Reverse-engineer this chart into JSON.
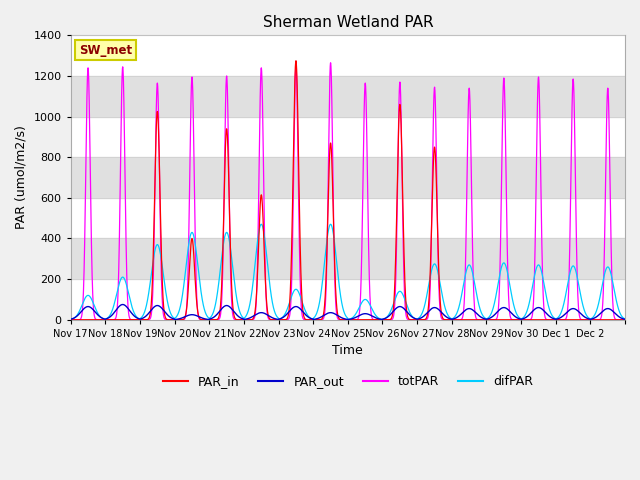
{
  "title": "Sherman Wetland PAR",
  "ylabel": "PAR (umol/m2/s)",
  "xlabel": "Time",
  "ylim": [
    0,
    1400
  ],
  "yticks": [
    0,
    200,
    400,
    600,
    800,
    1000,
    1200,
    1400
  ],
  "xtick_labels": [
    "Nov 17",
    "Nov 18",
    "Nov 19",
    "Nov 20",
    "Nov 21",
    "Nov 22",
    "Nov 23",
    "Nov 24",
    "Nov 25",
    "Nov 26",
    "Nov 27",
    "Nov 28",
    "Nov 29",
    "Nov 30",
    "Dec 1",
    "Dec 2"
  ],
  "site_label": "SW_met",
  "colors": {
    "PAR_in": "#ff0000",
    "PAR_out": "#0000cc",
    "totPAR": "#ff00ff",
    "difPAR": "#00ccff"
  },
  "bg_band_color": "#e0e0e0",
  "plot_bg": "#ffffff",
  "title_fontsize": 11,
  "axis_fontsize": 9,
  "tick_fontsize": 8,
  "n_days": 16,
  "totPAR_peaks": [
    1240,
    1245,
    1165,
    1195,
    1200,
    1240,
    1250,
    1265,
    1165,
    1170,
    1145,
    1140,
    1190,
    1195,
    1185,
    1140
  ],
  "PAR_in_peaks": [
    0,
    0,
    1025,
    400,
    940,
    615,
    1275,
    870,
    0,
    1060,
    850,
    0,
    0,
    0,
    0,
    0
  ],
  "difPAR_peaks": [
    120,
    210,
    370,
    430,
    430,
    470,
    150,
    470,
    100,
    140,
    275,
    270,
    280,
    270,
    265,
    260
  ],
  "PAR_out_peaks": [
    65,
    75,
    70,
    25,
    70,
    35,
    65,
    35,
    30,
    65,
    60,
    55,
    60,
    60,
    55,
    55
  ]
}
